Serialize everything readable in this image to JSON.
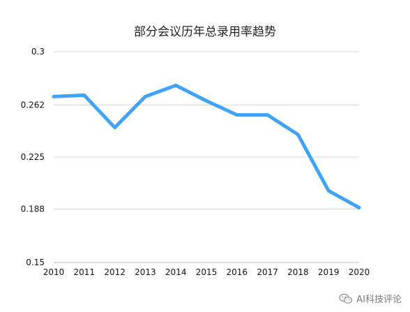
{
  "chart_data": {
    "type": "line",
    "title": "部分会议历年总录用率趋势",
    "xlabel": "",
    "ylabel": "",
    "x": [
      "2010",
      "2011",
      "2012",
      "2013",
      "2014",
      "2015",
      "2016",
      "2017",
      "2018",
      "2019",
      "2020"
    ],
    "series": [
      {
        "values": [
          0.268,
          0.269,
          0.246,
          0.268,
          0.276,
          0.265,
          0.255,
          0.255,
          0.241,
          0.201,
          0.189
        ],
        "color": "#3fa2f4"
      }
    ],
    "ylim": [
      0.15,
      0.3
    ],
    "yticks": [
      "0.15",
      "0.188",
      "0.225",
      "0.262",
      "0.3"
    ],
    "grid": true,
    "legend": "none"
  },
  "watermark": {
    "text": "AI科技评论",
    "icon": "wechat-icon"
  }
}
